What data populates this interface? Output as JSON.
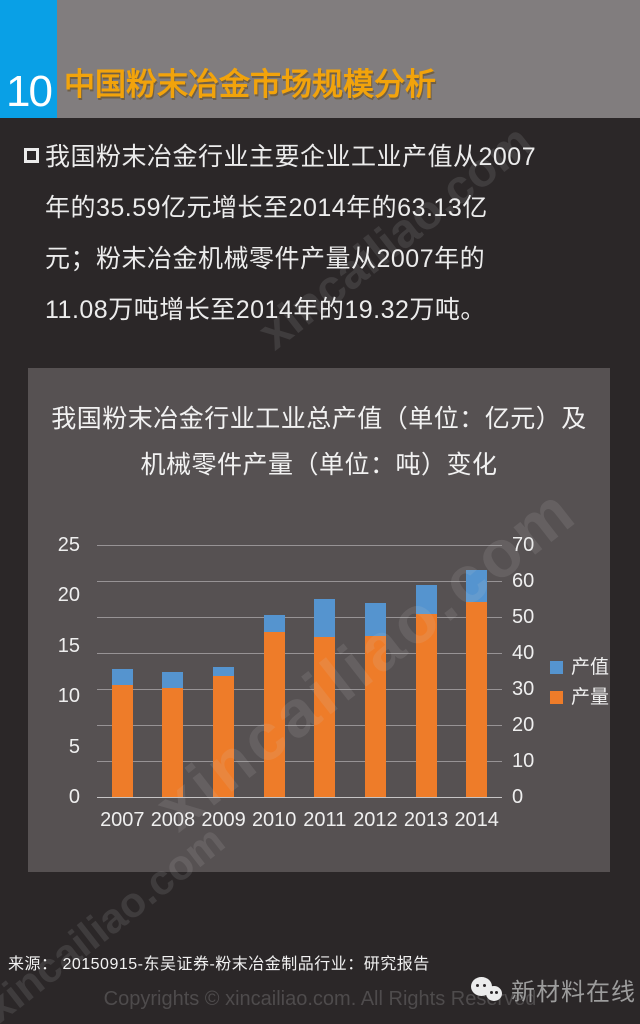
{
  "header": {
    "page_number": "10",
    "title": "中国粉末冶金市场规模分析",
    "accent_blue": "#09A0E6",
    "band_gray": "#817D7E",
    "title_color": "#F2A30B"
  },
  "body": {
    "lines": [
      "我国粉末冶金行业主要企业工业产值从2007",
      "年的35.59亿元增长至2014年的63.13亿",
      "元；粉末冶金机械零件产量从2007年的",
      "11.08万吨增长至2014年的19.32万吨。"
    ]
  },
  "chart": {
    "panel_title_lines": [
      "我国粉末冶金行业工业总产值（单位：亿元）及",
      "机械零件产量（单位：吨）变化"
    ]
  },
  "chart_data": {
    "type": "bar",
    "title": "我国粉末冶金行业工业总产值（单位：亿元）及机械零件产量（单位：吨）变化",
    "categories": [
      "2007",
      "2008",
      "2009",
      "2010",
      "2011",
      "2012",
      "2013",
      "2014"
    ],
    "series": [
      {
        "name": "产值",
        "axis": "right",
        "unit": "亿元",
        "color": "#5594CF",
        "values": [
          35.59,
          34.8,
          36.2,
          50.6,
          54.9,
          53.8,
          59.0,
          63.13
        ]
      },
      {
        "name": "产量",
        "axis": "left",
        "unit": "万吨",
        "color": "#EE7C29",
        "values": [
          11.08,
          10.8,
          12.0,
          16.4,
          15.9,
          16.0,
          18.2,
          19.32
        ]
      }
    ],
    "left_axis": {
      "min": 0,
      "max": 25,
      "step": 5,
      "ticks": [
        "25",
        "20",
        "15",
        "10",
        "5",
        "0"
      ]
    },
    "right_axis": {
      "min": 0,
      "max": 70,
      "step": 10,
      "ticks": [
        "70",
        "60",
        "50",
        "40",
        "30",
        "20",
        "10",
        "0"
      ]
    },
    "legend": [
      "产值",
      "产量"
    ],
    "legend_position": "right",
    "grid": true,
    "plot_bg": "#565152"
  },
  "footer": {
    "source": "来源：  20150915-东吴证券-粉末冶金制品行业：研究报告",
    "copyright": "Copyrights © xincailiao.com. All Rights Reserved",
    "brand": "新材料在线"
  },
  "watermark": {
    "text": "xincailiao.com"
  }
}
